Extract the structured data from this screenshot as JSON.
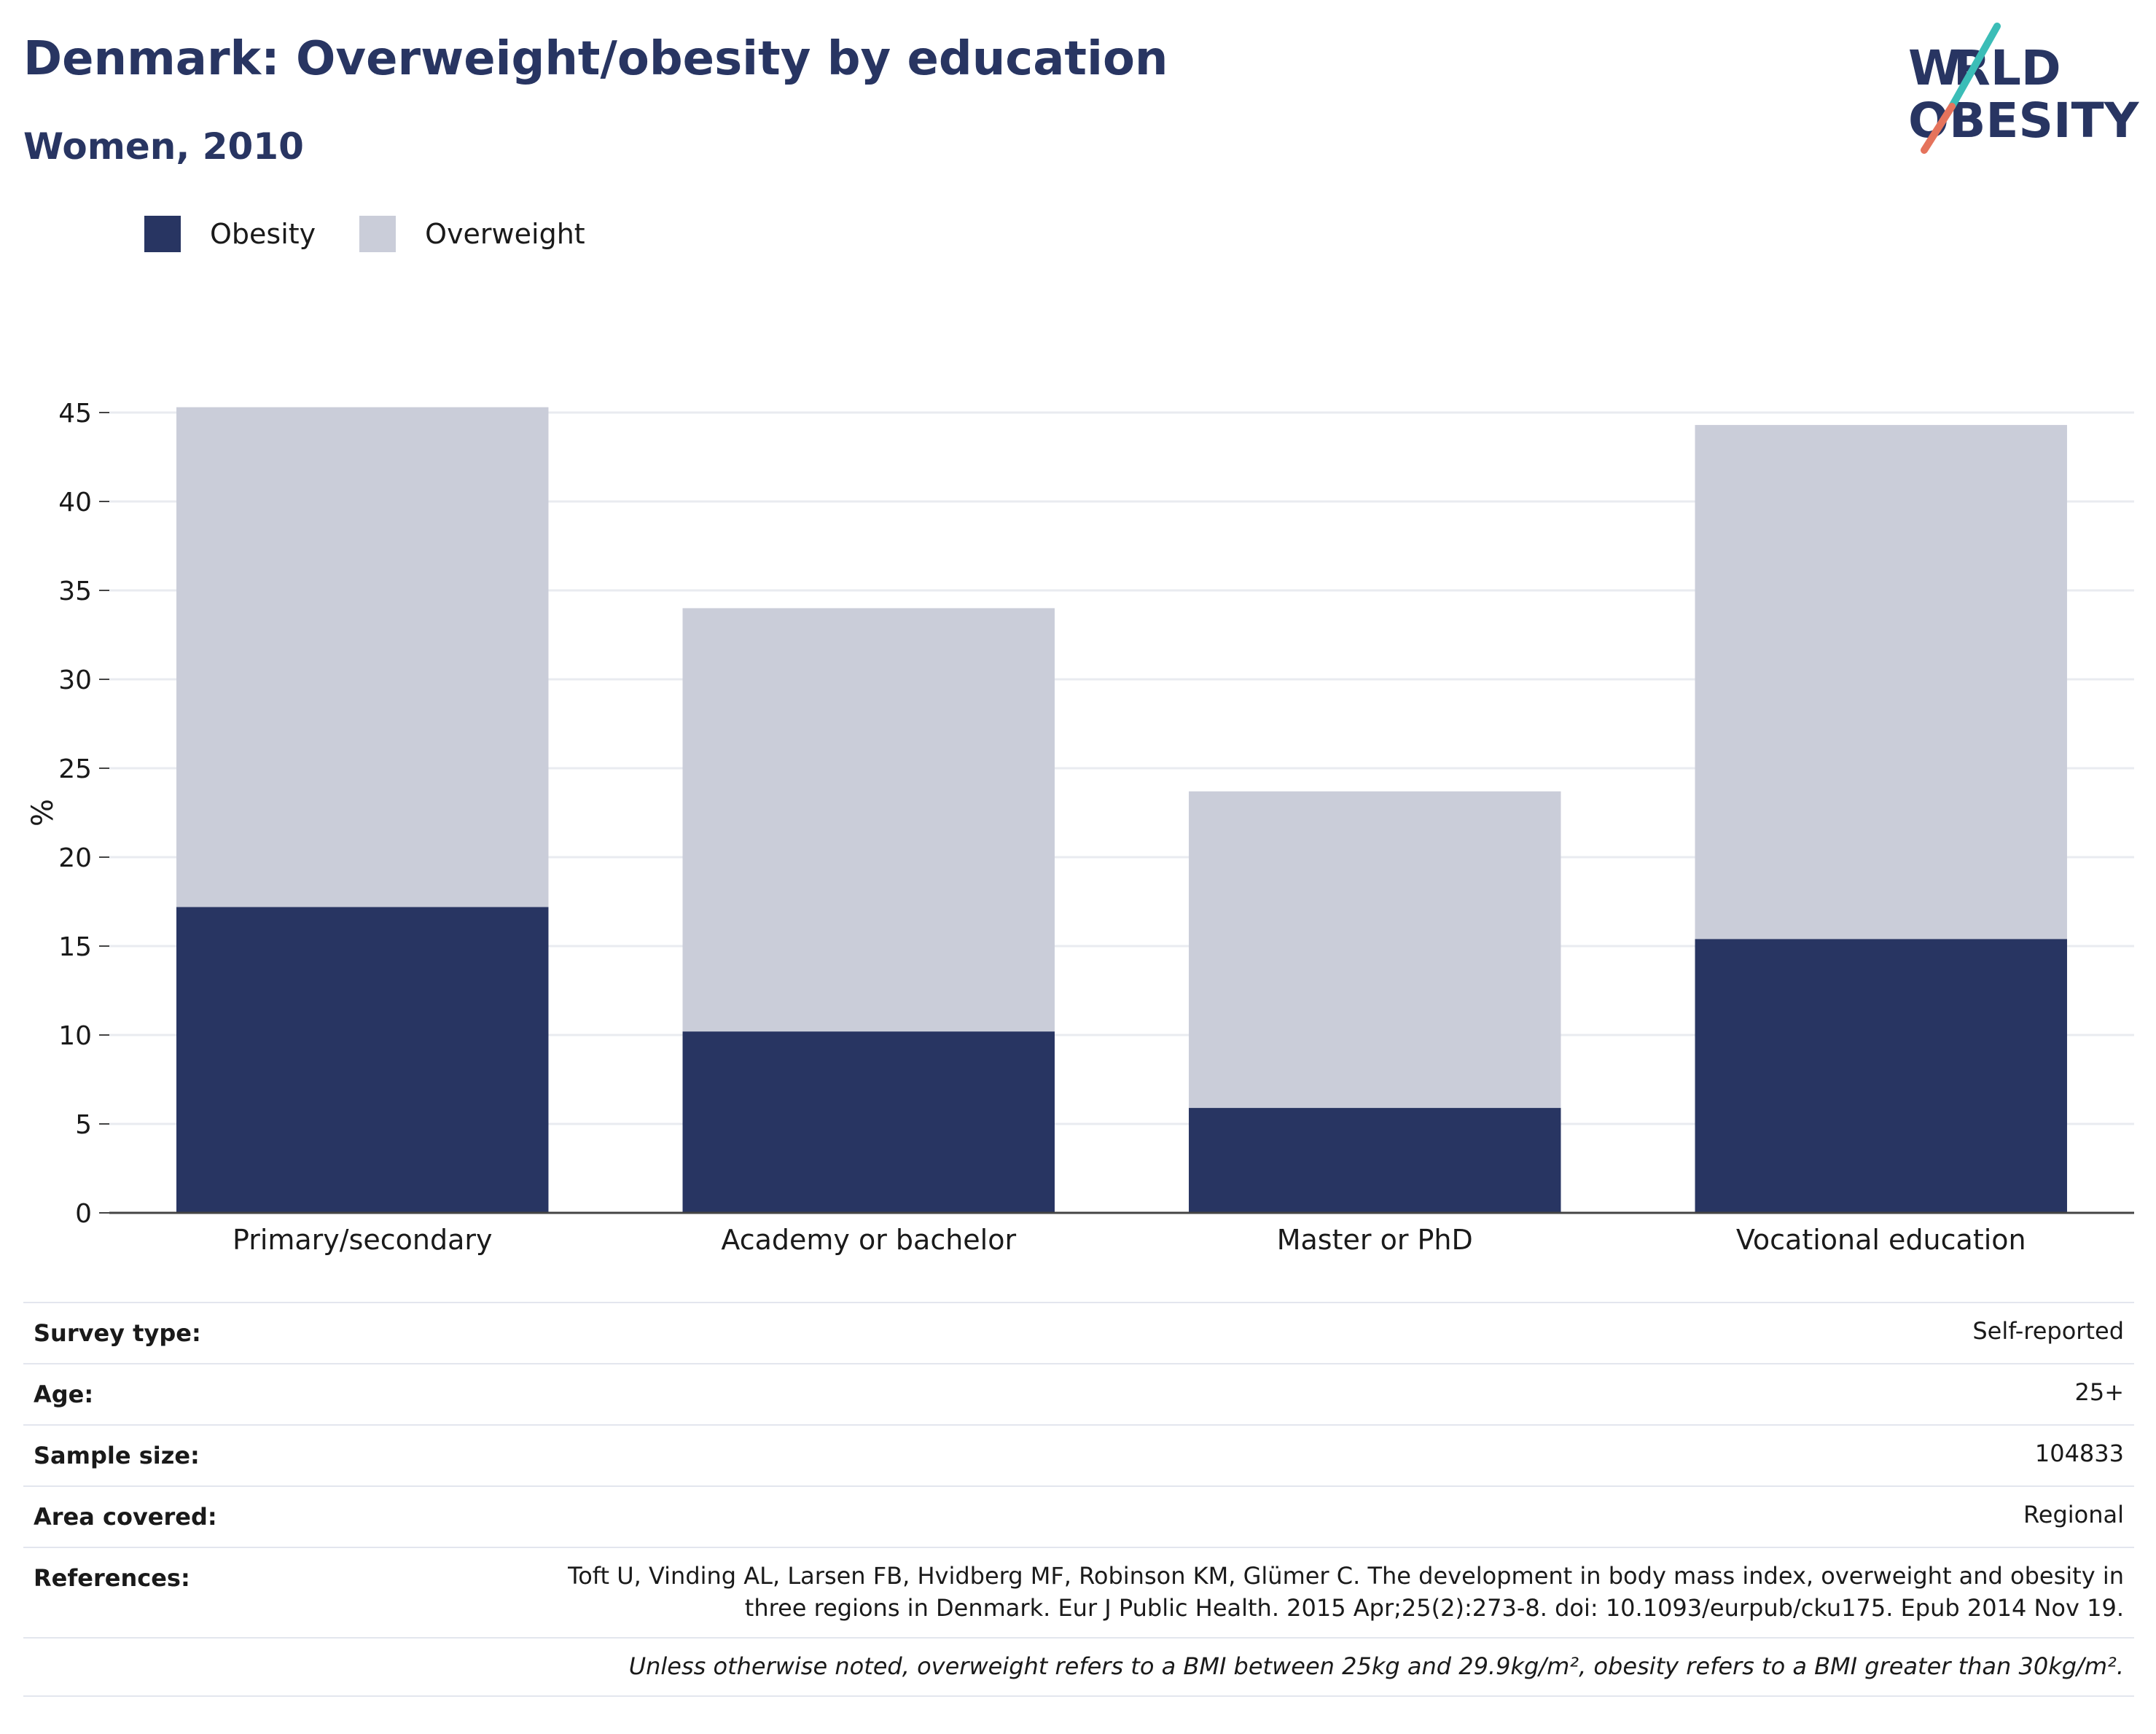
{
  "header": {
    "title": "Denmark: Overweight/obesity by education",
    "subtitle": "Women, 2010",
    "logo_text": "WORLD OBESITY"
  },
  "colors": {
    "obesity": "#283562",
    "overweight": "#cacdd9",
    "title": "#283562",
    "logo_teal": "#3bbdb7",
    "logo_coral": "#e5735c",
    "grid": "#e9ebf0"
  },
  "legend": {
    "items": [
      {
        "label": "Obesity",
        "color": "#283562"
      },
      {
        "label": "Overweight",
        "color": "#cacdd9"
      }
    ]
  },
  "chart_data": {
    "type": "bar",
    "stacked": true,
    "categories": [
      "Primary/secondary",
      "Academy or bachelor",
      "Master or PhD",
      "Vocational education"
    ],
    "series": [
      {
        "name": "Obesity",
        "values": [
          17.2,
          10.2,
          5.9,
          15.4
        ]
      },
      {
        "name": "Overweight",
        "values": [
          28.1,
          23.8,
          17.8,
          28.9
        ]
      }
    ],
    "ylabel": "%",
    "ylim": [
      0,
      45
    ],
    "yticks": [
      0,
      5,
      10,
      15,
      20,
      25,
      30,
      35,
      40,
      45
    ],
    "grid": true,
    "legend_position": "top-left"
  },
  "info": {
    "rows": [
      {
        "key": "Survey type:",
        "value": "Self-reported"
      },
      {
        "key": "Age:",
        "value": "25+"
      },
      {
        "key": "Sample size:",
        "value": "104833"
      },
      {
        "key": "Area covered:",
        "value": "Regional"
      }
    ],
    "references": {
      "key": "References:",
      "line1": "Toft U, Vinding AL, Larsen FB, Hvidberg MF, Robinson KM, Glümer C. The development in body mass index, overweight and obesity in",
      "line2": "three regions in Denmark. Eur J Public Health. 2015 Apr;25(2):273-8. doi: 10.1093/eurpub/cku175. Epub 2014 Nov 19."
    },
    "note": "Unless otherwise noted, overweight refers to a BMI between 25kg and 29.9kg/m², obesity refers to a BMI greater than 30kg/m²."
  }
}
